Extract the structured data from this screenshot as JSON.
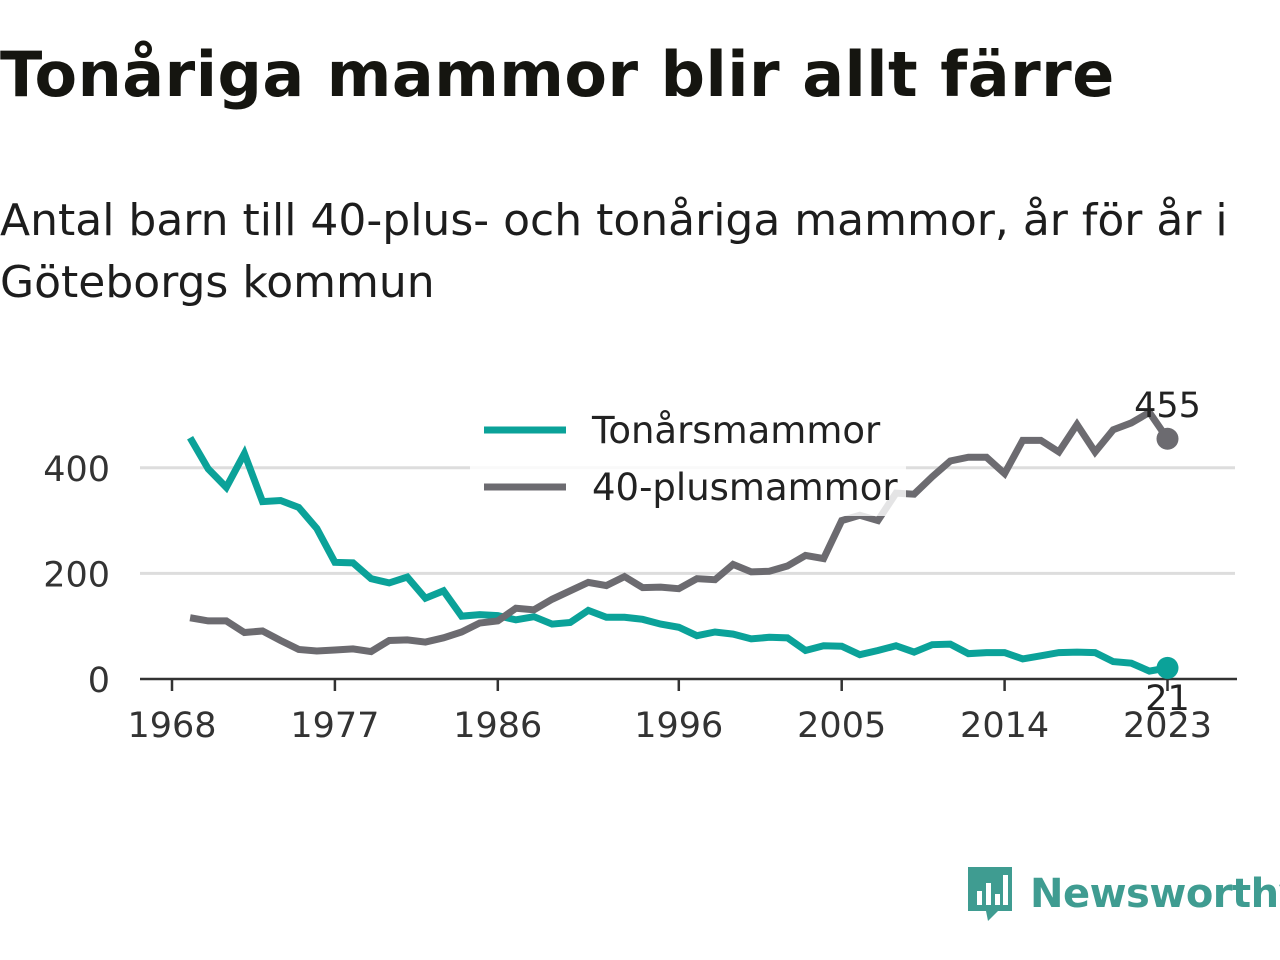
{
  "title": "Tonåriga mammor blir allt färre",
  "subtitle": "Antal barn till 40-plus- och tonåriga mammor, år för år i Göteborgs kommun",
  "brand": "Newsworthy",
  "colors": {
    "teen": "#0ba299",
    "plus40": "#6c6b70",
    "grid": "#dddddd",
    "axis": "#333333"
  },
  "chart_data": {
    "type": "line",
    "x": [
      1969,
      1970,
      1971,
      1972,
      1973,
      1974,
      1975,
      1976,
      1977,
      1978,
      1979,
      1980,
      1981,
      1982,
      1983,
      1984,
      1985,
      1986,
      1987,
      1988,
      1989,
      1990,
      1991,
      1992,
      1993,
      1994,
      1995,
      1996,
      1997,
      1998,
      1999,
      2000,
      2001,
      2002,
      2003,
      2004,
      2005,
      2006,
      2007,
      2008,
      2009,
      2010,
      2011,
      2012,
      2013,
      2014,
      2015,
      2016,
      2017,
      2018,
      2019,
      2020,
      2021,
      2022,
      2023
    ],
    "series": [
      {
        "name": "Tonårsmammor",
        "values": [
          457,
          398,
          363,
          427,
          336,
          338,
          325,
          285,
          221,
          220,
          190,
          182,
          193,
          153,
          167,
          119,
          122,
          120,
          112,
          118,
          104,
          107,
          130,
          117,
          117,
          113,
          104,
          98,
          82,
          89,
          85,
          76,
          79,
          78,
          54,
          63,
          62,
          46,
          54,
          63,
          51,
          65,
          66,
          48,
          50,
          50,
          38,
          44,
          50,
          51,
          50,
          33,
          30,
          15,
          21
        ]
      },
      {
        "name": "40-plusmammor",
        "values": [
          116,
          110,
          110,
          88,
          91,
          73,
          56,
          53,
          55,
          57,
          52,
          73,
          74,
          70,
          78,
          89,
          106,
          110,
          134,
          131,
          151,
          167,
          183,
          177,
          194,
          173,
          174,
          171,
          190,
          188,
          217,
          203,
          204,
          214,
          234,
          228,
          300,
          310,
          300,
          352,
          350,
          383,
          413,
          420,
          420,
          389,
          452,
          452,
          430,
          482,
          430,
          472,
          485,
          505,
          455
        ]
      }
    ],
    "xticks": [
      "1968",
      "1977",
      "1986",
      "1996",
      "2005",
      "2014",
      "2023"
    ],
    "yticks": [
      "0",
      "200",
      "400"
    ],
    "ylim": [
      0,
      520
    ],
    "end_labels": [
      "21",
      "455"
    ],
    "legend_position": "top-center",
    "grid": true
  }
}
